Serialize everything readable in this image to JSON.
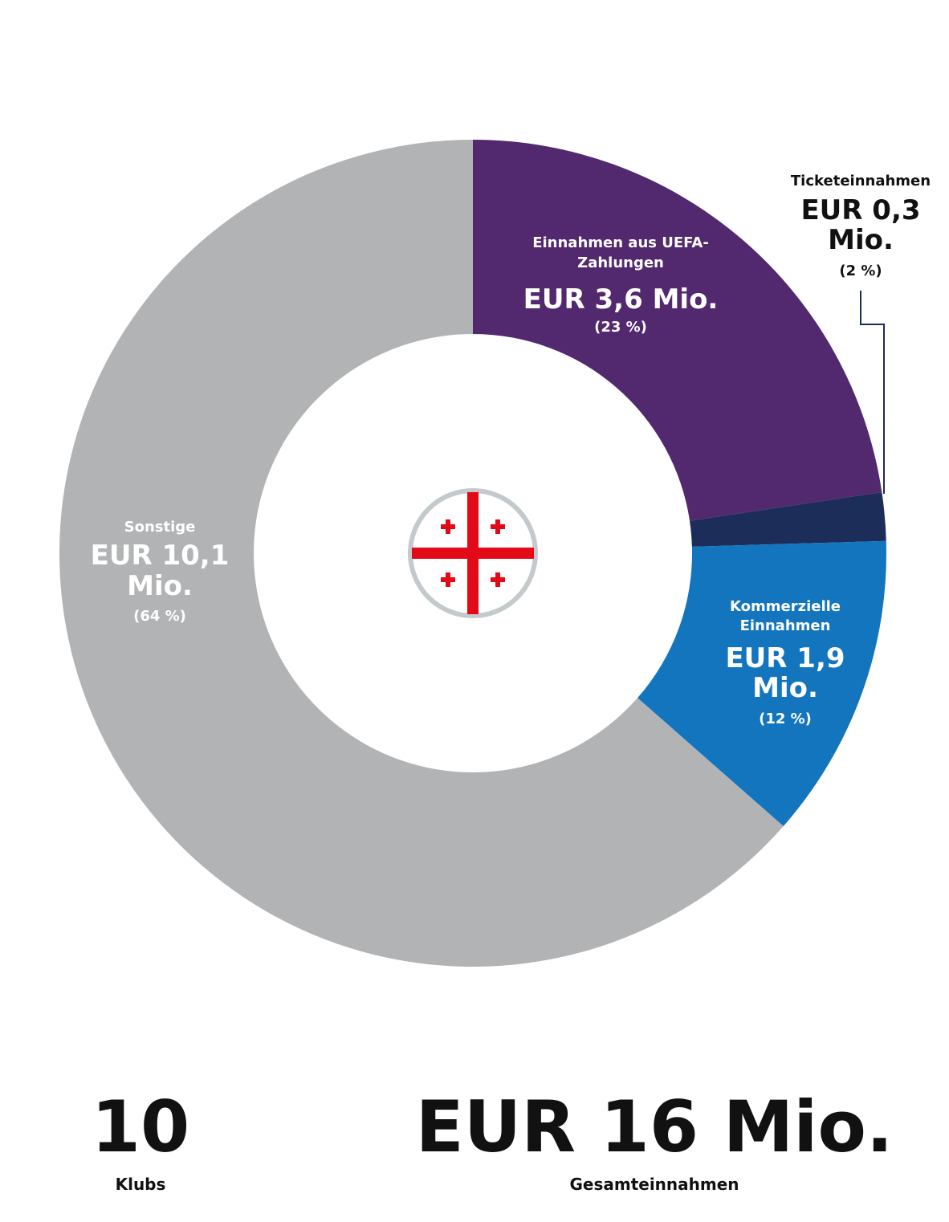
{
  "chart_data": {
    "type": "donut",
    "segments": [
      {
        "name": "Einnahmen aus UEFA-Zahlungen",
        "value": 3.6,
        "value_label": "EUR 3,6 Mio.",
        "percent": 23,
        "percent_label": "(23 %)",
        "color": "#52286e"
      },
      {
        "name": "Ticketeinnahmen",
        "value": 0.3,
        "value_label": "EUR 0,3 Mio.",
        "percent": 2,
        "percent_label": "(2 %)",
        "color": "#1c2d5a"
      },
      {
        "name": "Kommerzielle Einnahmen",
        "value": 1.9,
        "value_label": "EUR 1,9 Mio.",
        "percent": 12,
        "percent_label": "(12 %)",
        "color": "#1275bd"
      },
      {
        "name": "Sonstige",
        "value": 10.1,
        "value_label": "EUR 10,1 Mio.",
        "percent": 64,
        "percent_label": "(64 %)",
        "color": "#b1b3b4"
      }
    ],
    "clubs": 10,
    "clubs_label": "Klubs",
    "total": 16,
    "total_label": "EUR 16 Mio.",
    "total_caption": "Gesamteinnahmen"
  }
}
